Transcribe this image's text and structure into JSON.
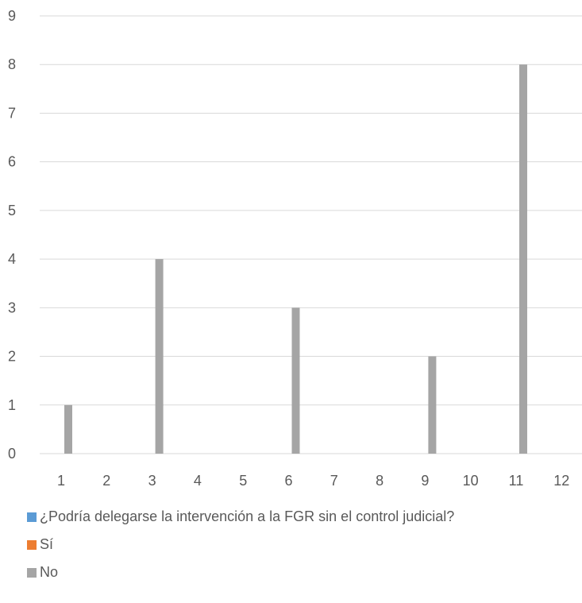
{
  "chart_data": {
    "type": "bar",
    "categories": [
      "1",
      "2",
      "3",
      "4",
      "5",
      "6",
      "7",
      "8",
      "9",
      "10",
      "11",
      "12"
    ],
    "series": [
      {
        "name": "¿Podría delegarse la intervención a la FGR sin el control judicial?",
        "color": "#5B9BD5",
        "values": [
          0,
          0,
          0,
          0,
          0,
          0,
          0,
          0,
          0,
          0,
          0,
          0
        ]
      },
      {
        "name": "Sí",
        "color": "#ED7D31",
        "values": [
          0,
          0,
          0,
          0,
          0,
          0,
          0,
          0,
          0,
          0,
          0,
          0
        ]
      },
      {
        "name": "No",
        "color": "#A5A5A5",
        "values": [
          1,
          0,
          4,
          0,
          0,
          3,
          0,
          0,
          2,
          0,
          8,
          0
        ]
      }
    ],
    "title": "",
    "xlabel": "",
    "ylabel": "",
    "ylim": [
      0,
      9
    ],
    "yticks": [
      0,
      1,
      2,
      3,
      4,
      5,
      6,
      7,
      8,
      9
    ],
    "grid": true,
    "legend_position": "bottom-left",
    "gridline_color": "#D9D9D9"
  }
}
